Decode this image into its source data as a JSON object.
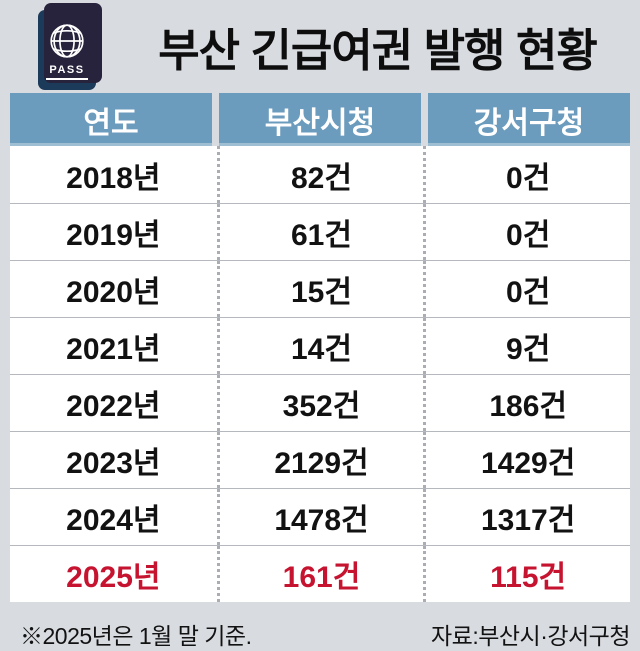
{
  "header": {
    "title": "부산 긴급여권 발행 현황",
    "passport_label": "PASS"
  },
  "table": {
    "columns": [
      "연도",
      "부산시청",
      "강서구청"
    ],
    "rows": [
      {
        "year": "2018년",
        "busan": "82건",
        "gangseo": "0건",
        "highlight": false
      },
      {
        "year": "2019년",
        "busan": "61건",
        "gangseo": "0건",
        "highlight": false
      },
      {
        "year": "2020년",
        "busan": "15건",
        "gangseo": "0건",
        "highlight": false
      },
      {
        "year": "2021년",
        "busan": "14건",
        "gangseo": "9건",
        "highlight": false
      },
      {
        "year": "2022년",
        "busan": "352건",
        "gangseo": "186건",
        "highlight": false
      },
      {
        "year": "2023년",
        "busan": "2129건",
        "gangseo": "1429건",
        "highlight": false
      },
      {
        "year": "2024년",
        "busan": "1478건",
        "gangseo": "1317건",
        "highlight": false
      },
      {
        "year": "2025년",
        "busan": "161건",
        "gangseo": "115건",
        "highlight": true
      }
    ]
  },
  "footer": {
    "note": "※2025년은 1월 말 기준.",
    "source": "자료:부산시·강서구청"
  },
  "colors": {
    "page_background": "#d8dbe0",
    "table_header_blue": "#6b9bbd",
    "highlight_red": "#c6132f",
    "passport_cover_navy": "#1c3a59",
    "passport_back_dark": "#27233c"
  },
  "chart_data": {
    "type": "table",
    "title": "부산 긴급여권 발행 현황",
    "categories": [
      "2018",
      "2019",
      "2020",
      "2021",
      "2022",
      "2023",
      "2024",
      "2025"
    ],
    "series": [
      {
        "name": "부산시청",
        "values": [
          82,
          61,
          15,
          14,
          352,
          2129,
          1478,
          161
        ]
      },
      {
        "name": "강서구청",
        "values": [
          0,
          0,
          0,
          9,
          186,
          1429,
          1317,
          115
        ]
      }
    ],
    "unit": "건",
    "note": "※2025년은 1월 말 기준.",
    "source": "자료:부산시·강서구청",
    "highlighted_category": "2025"
  }
}
